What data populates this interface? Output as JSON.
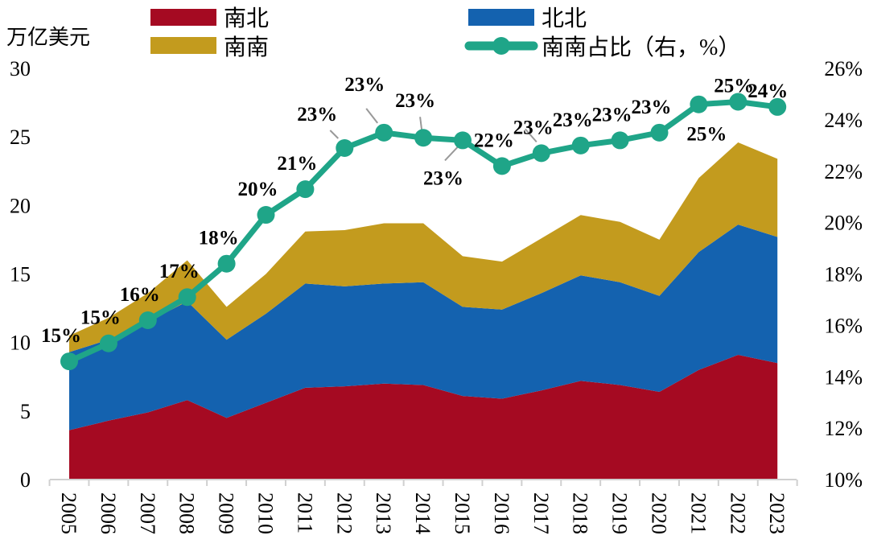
{
  "chart_data": {
    "type": "area",
    "title": "",
    "ylabel": "万亿美元",
    "ylabel_right": "",
    "ylim": [
      0,
      30
    ],
    "yticks": [
      "0",
      "5",
      "10",
      "15",
      "20",
      "25",
      "30"
    ],
    "ylim_right": [
      10,
      26
    ],
    "yticks_right": [
      "10%",
      "12%",
      "14%",
      "16%",
      "18%",
      "20%",
      "22%",
      "24%",
      "26%"
    ],
    "categories": [
      "2005",
      "2006",
      "2007",
      "2008",
      "2009",
      "2010",
      "2011",
      "2012",
      "2013",
      "2014",
      "2015",
      "2016",
      "2017",
      "2018",
      "2019",
      "2020",
      "2021",
      "2022",
      "2023"
    ],
    "series": [
      {
        "name": "南北",
        "type": "stacked-area",
        "color": "#A50A22",
        "values": [
          3.6,
          4.3,
          4.9,
          5.8,
          4.5,
          5.6,
          6.7,
          6.8,
          7.0,
          6.9,
          6.1,
          5.9,
          6.5,
          7.2,
          6.9,
          6.4,
          8.0,
          9.1,
          8.5
        ]
      },
      {
        "name": "北北",
        "type": "stacked-area",
        "color": "#1462AF",
        "values": [
          5.7,
          5.9,
          6.6,
          7.2,
          5.7,
          6.5,
          7.6,
          7.3,
          7.3,
          7.5,
          6.5,
          6.5,
          7.1,
          7.7,
          7.5,
          7.0,
          8.6,
          9.5,
          9.2
        ]
      },
      {
        "name": "南南",
        "type": "stacked-area",
        "color": "#C39B1E",
        "values": [
          1.2,
          1.6,
          2.1,
          3.0,
          2.4,
          2.9,
          3.8,
          4.1,
          4.4,
          4.3,
          3.7,
          3.5,
          4.0,
          4.4,
          4.4,
          4.1,
          5.4,
          6.0,
          5.7
        ]
      },
      {
        "name": "南南占比（右，%）",
        "type": "line",
        "axis": "right",
        "color": "#1FA588",
        "values": [
          14.6,
          15.3,
          16.2,
          17.1,
          18.4,
          20.3,
          21.3,
          22.9,
          23.5,
          23.3,
          23.2,
          22.2,
          22.7,
          23.0,
          23.2,
          23.5,
          24.6,
          24.7,
          24.5
        ],
        "labels": [
          "15%",
          "15%",
          "16%",
          "17%",
          "18%",
          "20%",
          "21%",
          "23%",
          "23%",
          "23%",
          "23%",
          "22%",
          "23%",
          "23%",
          "23%",
          "23%",
          "25%",
          "25%",
          "24%"
        ]
      }
    ],
    "legend": "top",
    "grid": false
  }
}
